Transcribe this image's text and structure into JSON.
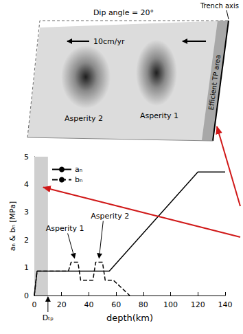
{
  "diagram": {
    "top_label": "Dip angle = 20°",
    "trench_label": "Trench axis",
    "velocity_label": "10cm/yr",
    "tp_label": "Efficient TP area",
    "asperity_labels": [
      "Asperity 2",
      "Asperity 1"
    ]
  },
  "chart_data": {
    "type": "line",
    "x_label": "depth(km)",
    "y_label": "aₙ & bₙ [MPa]",
    "xlim": [
      0,
      140
    ],
    "xticks": [
      0,
      20,
      40,
      60,
      80,
      100,
      120,
      140
    ],
    "ylim": [
      0,
      5
    ],
    "yticks": [
      0,
      1,
      2,
      3,
      4,
      5
    ],
    "grid": false,
    "legend": "upper left",
    "series": [
      {
        "name": "aₙ",
        "color": "#000000",
        "line_style": "solid",
        "x": [
          0,
          2,
          55,
          120,
          140
        ],
        "values": [
          0,
          0.88,
          0.88,
          4.45,
          4.45
        ]
      },
      {
        "name": "bₙ",
        "color": "#000000",
        "line_style": "dashed",
        "x": [
          0,
          2,
          25,
          27,
          32,
          34,
          43,
          45,
          50,
          52,
          58,
          70
        ],
        "values": [
          0,
          0.88,
          0.88,
          1.2,
          1.2,
          0.55,
          0.55,
          1.2,
          1.2,
          0.55,
          0.55,
          0
        ]
      }
    ],
    "shaded_region": {
      "x": [
        0,
        10
      ],
      "label": "Dₜₚ"
    },
    "annotations": [
      {
        "text": "Asperity 1",
        "x": 29.5,
        "y": 1.2
      },
      {
        "text": "Asperity 2",
        "x": 47.5,
        "y": 1.2
      }
    ]
  }
}
